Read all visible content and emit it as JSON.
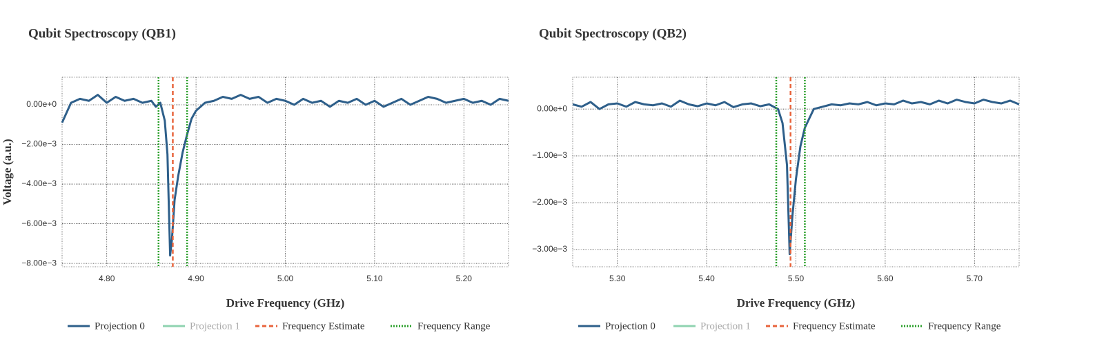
{
  "chart_data": [
    {
      "type": "line",
      "title": "Qubit Spectroscopy (QB1)",
      "x_label": "Drive Frequency (GHz)",
      "y_label": "Voltage (a.u.)",
      "x": [
        4.75,
        4.76,
        4.77,
        4.78,
        4.79,
        4.8,
        4.81,
        4.82,
        4.83,
        4.84,
        4.85,
        4.855,
        4.86,
        4.865,
        4.868,
        4.871,
        4.873,
        4.876,
        4.88,
        4.885,
        4.89,
        4.895,
        4.9,
        4.91,
        4.92,
        4.93,
        4.94,
        4.95,
        4.96,
        4.97,
        4.98,
        4.99,
        5.0,
        5.01,
        5.02,
        5.03,
        5.04,
        5.05,
        5.06,
        5.07,
        5.08,
        5.09,
        5.1,
        5.11,
        5.12,
        5.13,
        5.14,
        5.15,
        5.16,
        5.17,
        5.18,
        5.19,
        5.2,
        5.21,
        5.22,
        5.23,
        5.24,
        5.25
      ],
      "series": [
        {
          "name": "Projection 0",
          "color": "#2e5f8a",
          "values": [
            -0.0009,
            0.0001,
            0.0003,
            0.0002,
            0.0005,
            0.0001,
            0.0004,
            0.0002,
            0.0003,
            0.0001,
            0.0002,
            -0.0001,
            0.0001,
            -0.0008,
            -0.0025,
            -0.0076,
            -0.0068,
            -0.0048,
            -0.0036,
            -0.0024,
            -0.0015,
            -0.0007,
            -0.0003,
            0.0001,
            0.0002,
            0.0004,
            0.0003,
            0.0005,
            0.0003,
            0.0004,
            0.0001,
            0.0003,
            0.0002,
            0,
            0.0003,
            0.0001,
            0.0002,
            -0.0001,
            0.0002,
            0.0001,
            0.0003,
            0,
            0.0002,
            -0.0001,
            0.0001,
            0.0003,
            0,
            0.0002,
            0.0004,
            0.0003,
            0.0001,
            0.0002,
            0.0003,
            0.0001,
            0.0002,
            0,
            0.0003,
            0.0002
          ]
        }
      ],
      "hidden_series": [
        {
          "name": "Projection 1",
          "color": "#8fd3b0"
        }
      ],
      "markers": [
        {
          "name": "Frequency Estimate",
          "color": "#e8643c",
          "style": "dashed",
          "x": [
            4.874
          ]
        },
        {
          "name": "Frequency Range",
          "color": "#2ca02c",
          "style": "dotted",
          "x": [
            4.858,
            4.89
          ]
        }
      ],
      "xlim": [
        4.75,
        5.25
      ],
      "ylim": [
        -0.00817,
        0.00139
      ],
      "xticks": [
        {
          "value": 4.8,
          "label": "4.80"
        },
        {
          "value": 4.9,
          "label": "4.90"
        },
        {
          "value": 5.0,
          "label": "5.00"
        },
        {
          "value": 5.1,
          "label": "5.10"
        },
        {
          "value": 5.2,
          "label": "5.20"
        }
      ],
      "yticks": [
        {
          "value": 0,
          "label": "0.00e+0"
        },
        {
          "value": -0.002,
          "label": "−2.00e−3"
        },
        {
          "value": -0.004,
          "label": "−4.00e−3"
        },
        {
          "value": -0.006,
          "label": "−6.00e−3"
        },
        {
          "value": -0.008,
          "label": "−8.00e−3"
        }
      ],
      "grid": true
    },
    {
      "type": "line",
      "title": "Qubit Spectroscopy (QB2)",
      "x_label": "Drive Frequency (GHz)",
      "x": [
        5.25,
        5.26,
        5.27,
        5.28,
        5.29,
        5.3,
        5.31,
        5.32,
        5.33,
        5.34,
        5.35,
        5.36,
        5.37,
        5.38,
        5.39,
        5.4,
        5.41,
        5.42,
        5.43,
        5.44,
        5.45,
        5.46,
        5.47,
        5.475,
        5.48,
        5.485,
        5.49,
        5.493,
        5.496,
        5.5,
        5.505,
        5.51,
        5.515,
        5.52,
        5.53,
        5.54,
        5.55,
        5.56,
        5.57,
        5.58,
        5.59,
        5.6,
        5.61,
        5.62,
        5.63,
        5.64,
        5.65,
        5.66,
        5.67,
        5.68,
        5.69,
        5.7,
        5.71,
        5.72,
        5.73,
        5.74,
        5.75
      ],
      "series": [
        {
          "name": "Projection 0",
          "color": "#2e5f8a",
          "values": [
            0.0001,
            5e-05,
            0.00015,
            0,
            0.0001,
            0.00012,
            5e-05,
            0.00015,
            0.0001,
            8e-05,
            0.00012,
            5e-05,
            0.00018,
            0.0001,
            6e-05,
            0.00012,
            8e-05,
            0.00015,
            4e-05,
            0.0001,
            0.00012,
            6e-05,
            0.0001,
            5e-05,
            0,
            -0.0003,
            -0.0012,
            -0.0031,
            -0.0023,
            -0.0015,
            -0.0008,
            -0.0004,
            -0.0002,
            0,
            5e-05,
            0.0001,
            8e-05,
            0.00012,
            0.0001,
            0.00015,
            8e-05,
            0.00012,
            0.0001,
            0.00018,
            0.00012,
            0.00015,
            0.0001,
            0.00018,
            0.00012,
            0.0002,
            0.00015,
            0.00012,
            0.0002,
            0.00015,
            0.00012,
            0.00018,
            0.0001
          ]
        }
      ],
      "hidden_series": [
        {
          "name": "Projection 1",
          "color": "#8fd3b0"
        }
      ],
      "markers": [
        {
          "name": "Frequency Estimate",
          "color": "#e8643c",
          "style": "dashed",
          "x": [
            5.494
          ]
        },
        {
          "name": "Frequency Range",
          "color": "#2ca02c",
          "style": "dotted",
          "x": [
            5.478,
            5.51
          ]
        }
      ],
      "xlim": [
        5.25,
        5.75
      ],
      "ylim": [
        -0.00337,
        0.00068
      ],
      "xticks": [
        {
          "value": 5.3,
          "label": "5.30"
        },
        {
          "value": 5.4,
          "label": "5.40"
        },
        {
          "value": 5.5,
          "label": "5.50"
        },
        {
          "value": 5.6,
          "label": "5.60"
        },
        {
          "value": 5.7,
          "label": "5.70"
        }
      ],
      "yticks": [
        {
          "value": 0,
          "label": "0.00e+0"
        },
        {
          "value": -0.001,
          "label": "−1.00e−3"
        },
        {
          "value": -0.002,
          "label": "−2.00e−3"
        },
        {
          "value": -0.003,
          "label": "−3.00e−3"
        }
      ],
      "grid": true
    }
  ]
}
